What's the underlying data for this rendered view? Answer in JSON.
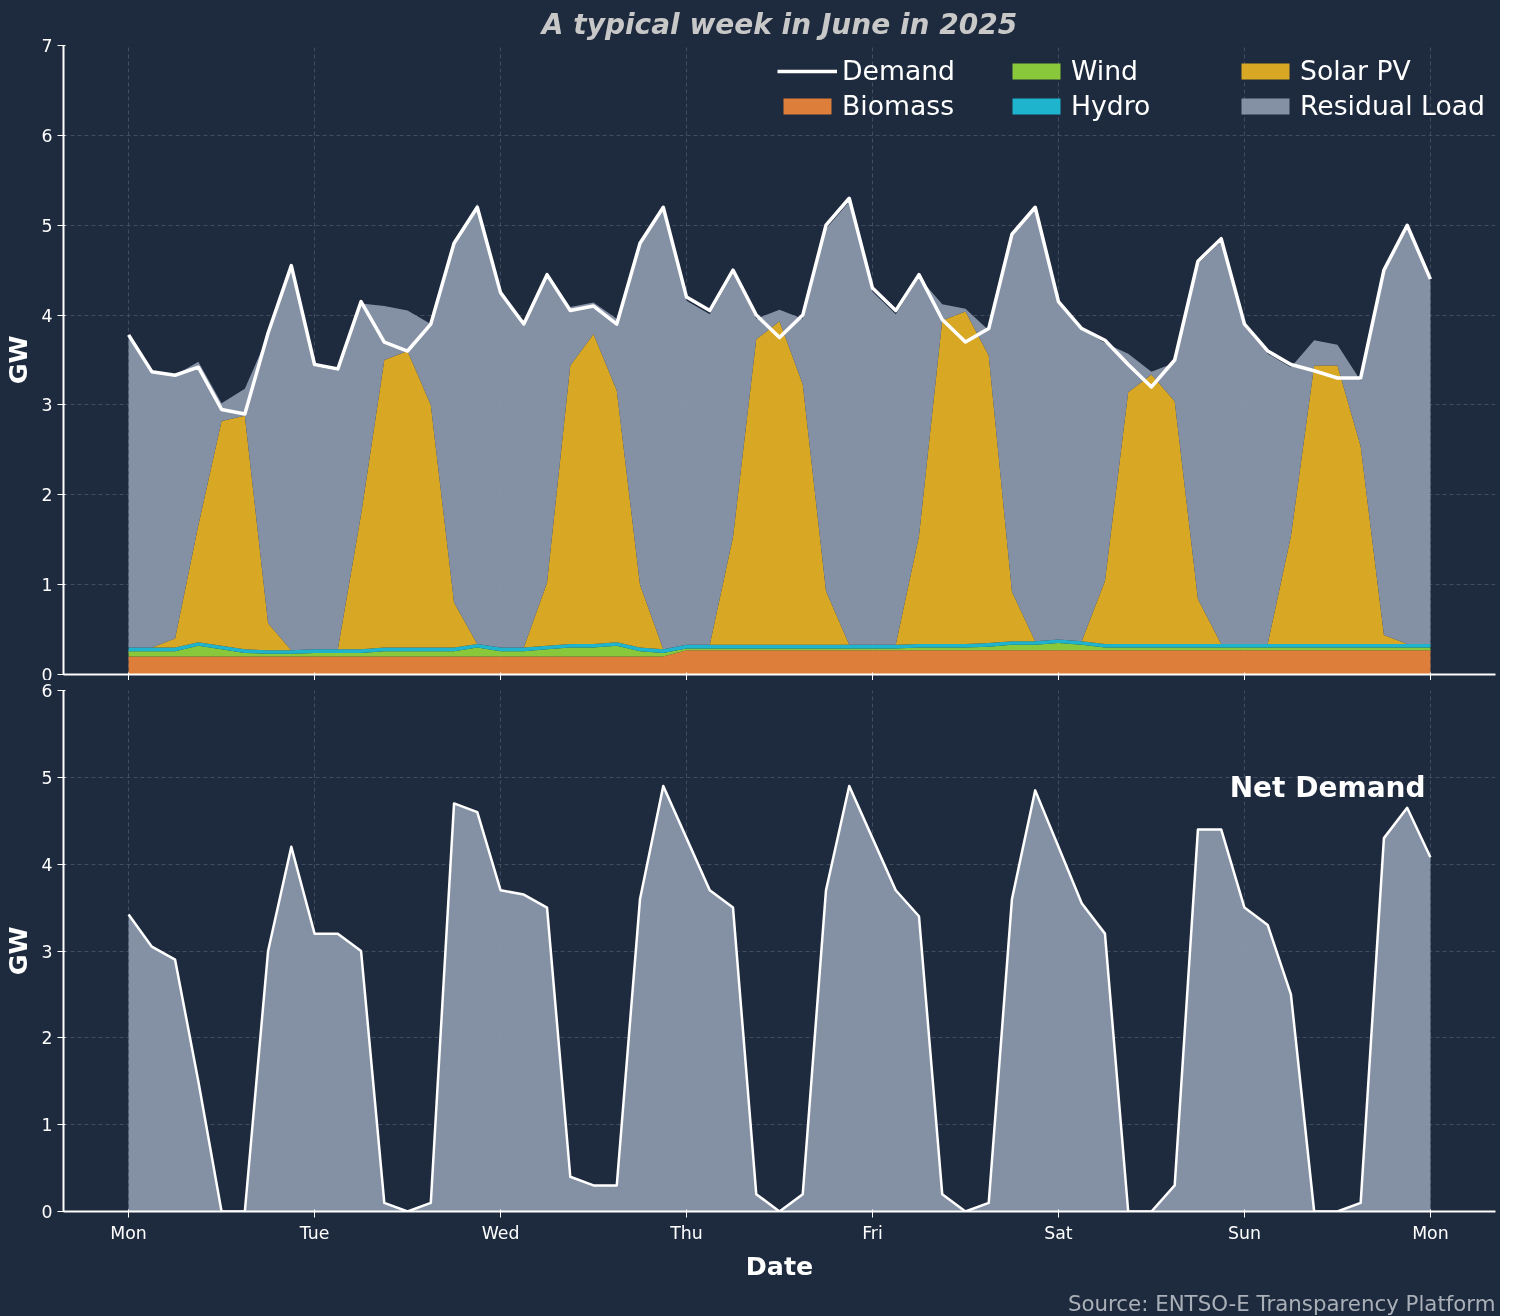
{
  "chart_data": [
    {
      "type": "area",
      "title": "A typical week in June in 2025",
      "ylabel": "GW",
      "stacked": true,
      "legend": "top right",
      "grid": true,
      "tick_labels": "y",
      "categories": [
        null,
        null,
        null,
        null,
        null,
        null,
        null,
        null,
        null,
        null,
        null,
        null,
        null,
        null,
        null,
        null,
        null,
        null,
        null,
        null,
        null,
        null,
        null,
        null,
        null,
        null,
        null,
        null,
        null,
        null,
        null,
        null,
        null,
        null,
        null,
        null,
        null,
        null,
        null,
        null,
        null,
        null,
        null,
        null,
        null,
        null,
        null,
        null,
        null,
        null,
        null,
        null,
        null,
        null,
        null,
        null,
        null
      ],
      "ylim": [
        0,
        7
      ],
      "yticks": [
        0,
        1,
        2,
        3,
        4,
        5,
        6,
        7
      ],
      "series": [
        {
          "name": "Biomass",
          "color": "#e8833a",
          "values": [
            0.2,
            0.2,
            0.2,
            0.2,
            0.2,
            0.2,
            0.2,
            0.2,
            0.2,
            0.2,
            0.2,
            0.2,
            0.2,
            0.2,
            0.2,
            0.2,
            0.2,
            0.2,
            0.2,
            0.2,
            0.2,
            0.2,
            0.2,
            0.2,
            0.27,
            0.27,
            0.27,
            0.27,
            0.27,
            0.27,
            0.27,
            0.27,
            0.27,
            0.27,
            0.27,
            0.27,
            0.27,
            0.27,
            0.27,
            0.27,
            0.27,
            0.27,
            0.27,
            0.27,
            0.27,
            0.27,
            0.27,
            0.27,
            0.27,
            0.27,
            0.27,
            0.27,
            0.27,
            0.27,
            0.27,
            0.27,
            0.27
          ]
        },
        {
          "name": "Wind",
          "color": "#8fd13a",
          "values": [
            0.06,
            0.06,
            0.06,
            0.12,
            0.08,
            0.04,
            0.03,
            0.03,
            0.04,
            0.04,
            0.04,
            0.06,
            0.06,
            0.06,
            0.06,
            0.1,
            0.06,
            0.06,
            0.08,
            0.1,
            0.1,
            0.12,
            0.06,
            0.04,
            0.02,
            0.02,
            0.02,
            0.02,
            0.02,
            0.02,
            0.02,
            0.02,
            0.02,
            0.02,
            0.03,
            0.03,
            0.03,
            0.04,
            0.06,
            0.06,
            0.08,
            0.06,
            0.03,
            0.03,
            0.03,
            0.03,
            0.03,
            0.03,
            0.03,
            0.03,
            0.03,
            0.03,
            0.03,
            0.03,
            0.03,
            0.03,
            0.03
          ]
        },
        {
          "name": "Hydro",
          "color": "#1fbcd6",
          "values": [
            0.04,
            0.04,
            0.04,
            0.04,
            0.04,
            0.04,
            0.04,
            0.04,
            0.04,
            0.04,
            0.04,
            0.04,
            0.04,
            0.04,
            0.04,
            0.04,
            0.04,
            0.04,
            0.04,
            0.04,
            0.04,
            0.04,
            0.04,
            0.04,
            0.04,
            0.04,
            0.04,
            0.04,
            0.04,
            0.04,
            0.04,
            0.04,
            0.04,
            0.04,
            0.04,
            0.04,
            0.04,
            0.04,
            0.04,
            0.04,
            0.04,
            0.04,
            0.04,
            0.04,
            0.04,
            0.04,
            0.04,
            0.04,
            0.04,
            0.04,
            0.04,
            0.04,
            0.04,
            0.04,
            0.04,
            0.04,
            0.04
          ]
        },
        {
          "name": "Solar PV",
          "color": "#e3ae23",
          "values": [
            0,
            0,
            0.1,
            1.3,
            2.5,
            2.6,
            0.3,
            0,
            0,
            0,
            1.5,
            3.2,
            3.3,
            2.7,
            0.5,
            0,
            0,
            0,
            0.7,
            3.1,
            3.45,
            2.8,
            0.7,
            0,
            0,
            0,
            1.2,
            3.4,
            3.6,
            2.9,
            0.6,
            0,
            0,
            0,
            1.2,
            3.6,
            3.7,
            3.2,
            0.55,
            0,
            0,
            0,
            0.7,
            2.8,
            3.0,
            2.7,
            0.5,
            0,
            0,
            0,
            1.2,
            3.1,
            3.1,
            2.2,
            0.1,
            0,
            0
          ]
        },
        {
          "name": "Residual Load",
          "color": "#8a97aa",
          "values": [
            3.48,
            3.07,
            2.93,
            1.82,
            0.2,
            0.3,
            3.2,
            4.25,
            3.15,
            3.1,
            2.35,
            0.6,
            0.45,
            0.9,
            4.0,
            4.9,
            3.95,
            3.6,
            3.45,
            0.65,
            0.35,
            0.8,
            3.8,
            4.9,
            3.83,
            3.68,
            2.93,
            0.23,
            0.13,
            0.73,
            4.03,
            4.93,
            3.93,
            3.68,
            2.88,
            0.18,
            0.03,
            0.28,
            3.98,
            4.83,
            3.78,
            3.48,
            2.65,
            0.43,
            0.03,
            0.43,
            3.73,
            4.48,
            3.53,
            3.23,
            1.88,
            0.28,
            0.23,
            0.73,
            4.03,
            4.63,
            4.03
          ]
        },
        {
          "name": "Demand",
          "type": "line",
          "color": "#ffffff",
          "values": [
            3.78,
            3.37,
            3.33,
            3.42,
            2.95,
            2.9,
            3.8,
            4.55,
            3.45,
            3.4,
            4.15,
            3.7,
            3.6,
            3.9,
            4.8,
            5.2,
            4.25,
            3.9,
            4.45,
            4.05,
            4.1,
            3.9,
            4.8,
            5.2,
            4.2,
            4.05,
            4.5,
            4.0,
            3.75,
            4.0,
            5.0,
            5.3,
            4.3,
            4.05,
            4.45,
            3.95,
            3.7,
            3.85,
            4.9,
            5.2,
            4.15,
            3.85,
            3.72,
            3.45,
            3.2,
            3.5,
            4.6,
            4.85,
            3.9,
            3.6,
            3.45,
            3.38,
            3.3,
            3.3,
            4.5,
            5.0,
            4.4
          ]
        }
      ]
    },
    {
      "type": "area",
      "xlabel": "Date",
      "ylabel": "GW",
      "grid": true,
      "annotations": [
        "Source: ENTSO-E Transparency Platform"
      ],
      "categories": [
        "Mon",
        null,
        null,
        null,
        null,
        null,
        null,
        null,
        "Tue",
        null,
        null,
        null,
        null,
        null,
        null,
        null,
        "Wed",
        null,
        null,
        null,
        null,
        null,
        null,
        null,
        "Thu",
        null,
        null,
        null,
        null,
        null,
        null,
        null,
        "Fri",
        null,
        null,
        null,
        null,
        null,
        null,
        null,
        "Sat",
        null,
        null,
        null,
        null,
        null,
        null,
        null,
        "Sun",
        null,
        null,
        null,
        null,
        null,
        null,
        null,
        "Mon"
      ],
      "ylim": [
        0,
        6
      ],
      "yticks": [
        0,
        1,
        2,
        3,
        4,
        5,
        6
      ],
      "series": [
        {
          "name": "Net Demand",
          "color": "#8a97aa",
          "values": [
            3.42,
            3.05,
            2.9,
            1.5,
            0,
            0,
            3.0,
            4.2,
            3.2,
            3.2,
            3.0,
            0.1,
            0,
            0.1,
            4.7,
            4.6,
            3.7,
            3.65,
            3.5,
            0.4,
            0.3,
            0.3,
            3.6,
            4.9,
            4.3,
            3.7,
            3.5,
            0.2,
            0,
            0.2,
            3.7,
            4.9,
            4.3,
            3.7,
            3.4,
            0.2,
            0,
            0.1,
            3.6,
            4.85,
            4.2,
            3.55,
            3.2,
            0,
            0,
            0.3,
            4.4,
            4.4,
            3.5,
            3.3,
            2.5,
            0,
            0,
            0.1,
            4.3,
            4.65,
            4.08
          ]
        }
      ]
    }
  ]
}
